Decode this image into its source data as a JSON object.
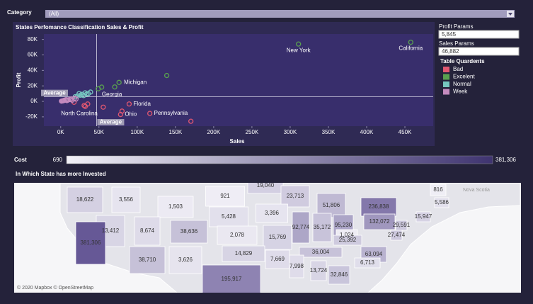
{
  "filter": {
    "label": "Category",
    "value": "(All)"
  },
  "chart_data": {
    "type": "scatter",
    "title": "States Perfomance Classification Sales & Profit",
    "x_label": "Sales",
    "y_label": "Profit",
    "xlim": [
      -22000,
      487000
    ],
    "xticks": [
      {
        "value": 0,
        "label": "0K"
      },
      {
        "value": 50000,
        "label": "50K"
      },
      {
        "value": 100000,
        "label": "100K"
      },
      {
        "value": 150000,
        "label": "150K"
      },
      {
        "value": 200000,
        "label": "200K"
      },
      {
        "value": 250000,
        "label": "250K"
      },
      {
        "value": 300000,
        "label": "300K"
      },
      {
        "value": 350000,
        "label": "350K"
      },
      {
        "value": 400000,
        "label": "400K"
      },
      {
        "value": 450000,
        "label": "450K"
      }
    ],
    "ylim": [
      -32000,
      87000
    ],
    "yticks": [
      {
        "value": -20000,
        "label": "-20K"
      },
      {
        "value": 0,
        "label": "0K"
      },
      {
        "value": 20000,
        "label": "20K"
      },
      {
        "value": 40000,
        "label": "40K"
      },
      {
        "value": 60000,
        "label": "60K"
      },
      {
        "value": 80000,
        "label": "80K"
      }
    ],
    "grid": false,
    "legend_title": "Table Quardents",
    "reference_lines": [
      {
        "name": "Profit Params",
        "axis": "y",
        "value": 5845,
        "value_label": "5,845",
        "label": "Average"
      },
      {
        "name": "Sales Params",
        "axis": "x",
        "value": 46882,
        "value_label": "46,882",
        "label": "Average"
      }
    ],
    "series": [
      {
        "name": "Bad",
        "color": "#e15771",
        "x": [
          170188,
          116512,
          80166,
          78258,
          89474,
          55603,
          35282,
          32108,
          30662,
          17431
        ],
        "values": [
          -25729,
          -15560,
          -12608,
          -16971,
          -3399,
          -7491,
          -3428,
          -6528,
          -5341,
          -1190
        ],
        "labels": [
          null,
          "Pennsylvania",
          null,
          "Ohio",
          "Florida",
          "North Carolina",
          null,
          null,
          null,
          null
        ]
      },
      {
        "name": "Excelent",
        "color": "#59a14f",
        "x": [
          310876,
          457688,
          76270,
          49096,
          138641,
          70637,
          53555
        ],
        "values": [
          74039,
          76381,
          24463,
          16250,
          33403,
          18598,
          18383
        ],
        "labels": [
          "New York",
          "California",
          "Michigan",
          "Georgia",
          null,
          null,
          null
        ]
      },
      {
        "name": "Normal",
        "color": "#76c7c0",
        "x": [
          28000,
          32000,
          36000,
          22000,
          39000,
          26000,
          19000,
          24000,
          30000,
          34000
        ],
        "values": [
          9000,
          11000,
          10000,
          7000,
          12000,
          8000,
          6000,
          10000,
          7500,
          9500
        ]
      },
      {
        "name": "Week",
        "color": "#c58bbf",
        "x": [
          5000,
          8000,
          2000,
          10000,
          12000,
          15000,
          4000,
          7000,
          20000,
          1000,
          3000,
          9000,
          14000,
          18000
        ],
        "values": [
          1500,
          1000,
          500,
          2000,
          2500,
          1500,
          1000,
          2200,
          3000,
          300,
          800,
          1500,
          3000,
          4000
        ]
      }
    ]
  },
  "cost": {
    "title": "Cost",
    "range": [
      690,
      {
        "value": 381306,
        "label": "381,306"
      }
    ]
  },
  "map": {
    "title": "In Which State has more Invested",
    "attribution": "© 2020 Mapbox © OpenStreetMap",
    "place": "Nova Scotia",
    "states": [
      {
        "value": 18622,
        "label": "18,622"
      },
      {
        "value": 3556,
        "label": "3,556"
      },
      921,
      {
        "value": 19040,
        "label": "19,040"
      },
      {
        "value": 23713,
        "label": "23,713"
      },
      816,
      {
        "value": 5586,
        "label": "5,586"
      },
      {
        "value": 1503,
        "label": "1,503"
      },
      {
        "value": 51806,
        "label": "51,806"
      },
      {
        "value": 5428,
        "label": "5,428"
      },
      {
        "value": 3396,
        "label": "3,396"
      },
      {
        "value": 236838,
        "label": "236,838"
      },
      {
        "value": 15947,
        "label": "15,947"
      },
      {
        "value": 13412,
        "label": "13,412"
      },
      {
        "value": 8674,
        "label": "8,674"
      },
      {
        "value": 38636,
        "label": "38,636"
      },
      {
        "value": 2078,
        "label": "2,078"
      },
      {
        "value": 92774,
        "label": "92,774"
      },
      {
        "value": 35172,
        "label": "35,172"
      },
      {
        "value": 95230,
        "label": "95,230"
      },
      {
        "value": 132072,
        "label": "132,072"
      },
      {
        "value": 29591,
        "label": "29,591"
      },
      {
        "value": 1024,
        "label": "1,024"
      },
      {
        "value": 27474,
        "label": "27,474"
      },
      {
        "value": 381306,
        "label": "381,306"
      },
      {
        "value": 15769,
        "label": "15,769"
      },
      {
        "value": 25392,
        "label": "25,392"
      },
      {
        "value": 14829,
        "label": "14,829"
      },
      {
        "value": 36004,
        "label": "36,004"
      },
      {
        "value": 63094,
        "label": "63,094"
      },
      {
        "value": 38710,
        "label": "38,710"
      },
      {
        "value": 3626,
        "label": "3,626"
      },
      {
        "value": 7669,
        "label": "7,669"
      },
      {
        "value": 6713,
        "label": "6,713"
      },
      {
        "value": 7998,
        "label": "7,998"
      },
      {
        "value": 13724,
        "label": "13,724"
      },
      {
        "value": 32846,
        "label": "32,846"
      },
      {
        "value": 195917,
        "label": "195,917"
      }
    ]
  }
}
